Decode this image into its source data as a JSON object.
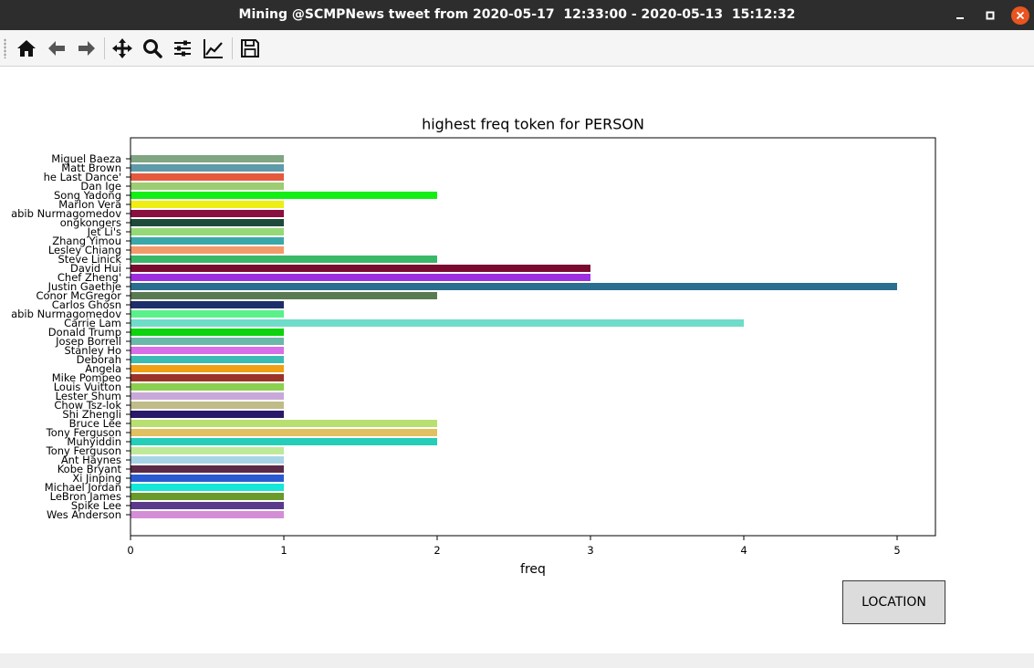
{
  "window": {
    "title": "Mining @SCMPNews tweet from 2020-05-17  12:33:00 - 2020-05-13  15:12:32"
  },
  "toolbar": {
    "items": [
      "home-icon",
      "back-arrow-icon",
      "forward-arrow-icon",
      "pan-move-icon",
      "zoom-magnifier-icon",
      "configure-subplots-icon",
      "edit-axis-curve-icon",
      "save-floppy-icon"
    ]
  },
  "button": {
    "location_label": "LOCATION"
  },
  "colors": {
    "titlebar": "#2d2d2d",
    "close_button": "#e95420"
  },
  "chart_data": {
    "type": "bar",
    "orientation": "horizontal",
    "title": "highest freq token for PERSON",
    "xlabel": "freq",
    "ylabel": "",
    "xlim": [
      0,
      5.25
    ],
    "xticks": [
      0,
      1,
      2,
      3,
      4,
      5
    ],
    "grid": false,
    "categories": [
      "Miguel Baeza",
      "Matt Brown",
      "he Last Dance'",
      "Dan Ige",
      "Song Yadong",
      "Marlon Vera",
      "abib Nurmagomedov",
      "ongkongers",
      "Jet Li's",
      "Zhang Yimou",
      "Lesley Chiang",
      "Steve Linick",
      "David Hui",
      "Chef Zheng'",
      "Justin Gaethje",
      "Conor McGregor",
      "Carlos Ghosn",
      "abib Nurmagomedov",
      "Carrie Lam",
      "Donald Trump",
      "Josep Borrell",
      "Stanley Ho",
      "Deborah",
      "Angela",
      "Mike Pompeo",
      "Louis Vuitton",
      "Lester Shum",
      "Chow Tsz-lok",
      "Shi Zhengli",
      "Bruce Lee",
      "Tony Ferguson",
      "Muhyiddin",
      "Tony Ferguson",
      "Ant Haynes",
      "Kobe Bryant",
      "Xi Jinping",
      "Michael Jordan",
      "LeBron James",
      "Spike Lee",
      "Wes Anderson"
    ],
    "values": [
      1,
      1,
      1,
      1,
      2,
      1,
      1,
      1,
      1,
      1,
      1,
      2,
      3,
      3,
      5,
      2,
      1,
      1,
      4,
      1,
      1,
      1,
      1,
      1,
      1,
      1,
      1,
      1,
      1,
      2,
      2,
      2,
      1,
      1,
      1,
      1,
      1,
      1,
      1,
      1
    ],
    "bar_colors": [
      "#7fa582",
      "#5f9aa8",
      "#e45a3d",
      "#9ccc73",
      "#14ee14",
      "#eeee14",
      "#8a1040",
      "#1d4a3a",
      "#96d878",
      "#3aa8a8",
      "#f39a6b",
      "#3ab86a",
      "#7a0a30",
      "#9d2ee0",
      "#2a6f8f",
      "#5a7a52",
      "#1d2f6a",
      "#5af08a",
      "#6edcc8",
      "#0ed20e",
      "#6ab8a8",
      "#d86ee8",
      "#3abcb4",
      "#f0a014",
      "#9a3428",
      "#8cd050",
      "#c8a8d8",
      "#c0bc88",
      "#2a1a6a",
      "#b8e070",
      "#e0c060",
      "#26cdb8",
      "#c0e89a",
      "#a8d4e8",
      "#5a2a48",
      "#2a5ad0",
      "#14e8d8",
      "#6a9a2a",
      "#5a3a8a",
      "#d48ed6"
    ]
  }
}
